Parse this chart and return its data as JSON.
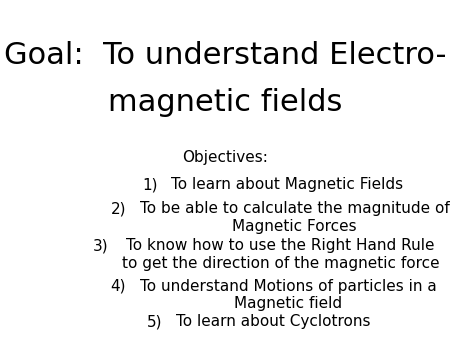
{
  "background_color": "#ffffff",
  "text_color": "#000000",
  "title_line1": "Goal:  To understand Electro-",
  "title_line2": "magnetic fields",
  "title_fontsize": 22,
  "objectives_label": "Objectives:",
  "objectives_fontsize": 11,
  "items_fontsize": 11,
  "items": [
    {
      "num": "1)",
      "text": "To learn about Magnetic Fields",
      "two_line": false
    },
    {
      "num": "2)",
      "text": "To be able to calculate the magnitude of\nMagnetic Forces",
      "two_line": true
    },
    {
      "num": "3)",
      "text": "To know how to use the Right Hand Rule\nto get the direction of the magnetic force",
      "two_line": true
    },
    {
      "num": "4)",
      "text": "To understand Motions of particles in a\nMagnetic field",
      "two_line": true
    },
    {
      "num": "5)",
      "text": "To learn about Cyclotrons",
      "two_line": false
    }
  ]
}
